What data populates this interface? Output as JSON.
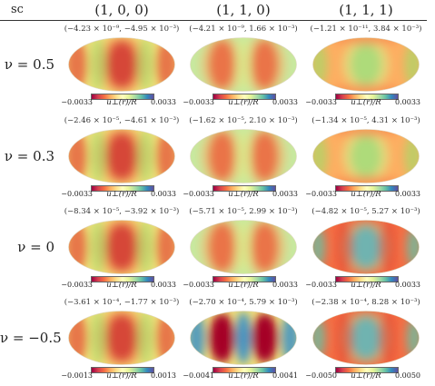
{
  "corner_label": "sc",
  "columns": [
    "(1, 0, 0)",
    "(1, 1, 0)",
    "(1, 1, 1)"
  ],
  "rows": [
    {
      "label": "ν = 0.5",
      "cells": [
        {
          "range": "(−4.23 × 10⁻⁹, −4.95 × 10⁻³)",
          "min": "−0.0033",
          "max": "0.0033",
          "pattern": "center-red"
        },
        {
          "range": "(−4.21 × 10⁻⁹, 1.66 × 10⁻³)",
          "min": "−0.0033",
          "max": "0.0033",
          "pattern": "twin-red"
        },
        {
          "range": "(−1.21 × 10⁻¹¹, 3.84 × 10⁻³)",
          "min": "−0.0033",
          "max": "0.0033",
          "pattern": "center-green"
        }
      ]
    },
    {
      "label": "ν = 0.3",
      "cells": [
        {
          "range": "(−2.46 × 10⁻⁵, −4.61 × 10⁻³)",
          "min": "−0.0033",
          "max": "0.0033",
          "pattern": "center-red"
        },
        {
          "range": "(−1.62 × 10⁻⁵, 2.10 × 10⁻³)",
          "min": "−0.0033",
          "max": "0.0033",
          "pattern": "twin-red"
        },
        {
          "range": "(−1.34 × 10⁻⁵, 4.31 × 10⁻³)",
          "min": "−0.0033",
          "max": "0.0033",
          "pattern": "center-green"
        }
      ]
    },
    {
      "label": "ν = 0",
      "cells": [
        {
          "range": "(−8.34 × 10⁻⁵, −3.92 × 10⁻³)",
          "min": "−0.0033",
          "max": "0.0033",
          "pattern": "center-red"
        },
        {
          "range": "(−5.71 × 10⁻⁵, 2.99 × 10⁻³)",
          "min": "−0.0033",
          "max": "0.0033",
          "pattern": "twin-red"
        },
        {
          "range": "(−4.82 × 10⁻⁵, 5.27 × 10⁻³)",
          "min": "−0.0033",
          "max": "0.0033",
          "pattern": "center-blue"
        }
      ]
    },
    {
      "label": "ν = −0.5",
      "cells": [
        {
          "range": "(−3.61 × 10⁻⁴, −1.77 × 10⁻³)",
          "min": "−0.0013",
          "max": "0.0013",
          "pattern": "center-red"
        },
        {
          "range": "(−2.70 × 10⁻⁴, 5.79 × 10⁻³)",
          "min": "−0.0041",
          "max": "0.0041",
          "pattern": "twin-red-strong"
        },
        {
          "range": "(−2.38 × 10⁻⁴, 8.28 × 10⁻³)",
          "min": "−0.0050",
          "max": "0.0050",
          "pattern": "center-blue"
        }
      ]
    }
  ],
  "colorbar_label": "u⊥(r)/R",
  "colors": {
    "red": "#b2182b",
    "orange": "#f46d43",
    "yellow": "#fee08b",
    "green": "#a6d96a",
    "blue": "#3288bd"
  }
}
